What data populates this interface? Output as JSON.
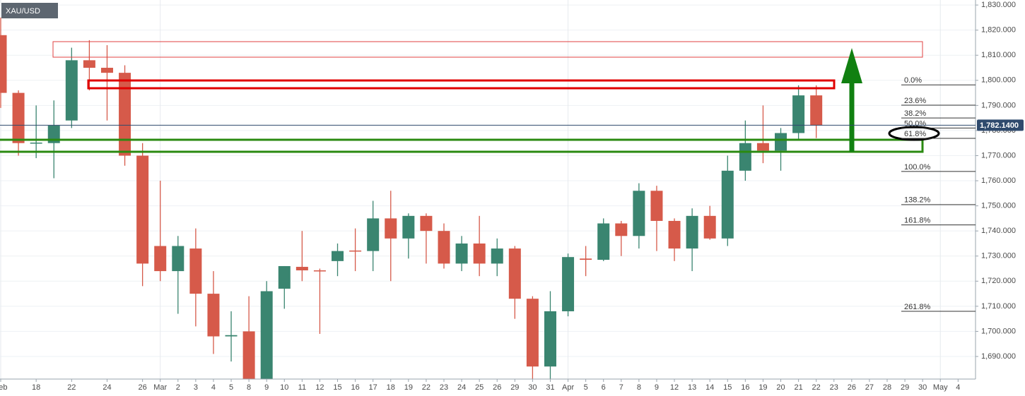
{
  "chart_data": {
    "type": "candlestick",
    "title": "XAU/USD",
    "categories": [
      "Feb",
      null,
      "18",
      null,
      "22",
      null,
      "24",
      null,
      "26",
      "Mar",
      "2",
      "3",
      "4",
      "5",
      "8",
      "9",
      "10",
      "11",
      "12",
      "15",
      "16",
      "17",
      "18",
      "19",
      "22",
      "23",
      "24",
      "25",
      "26",
      "29",
      "30",
      "31",
      "Apr",
      "5",
      "6",
      "7",
      "8",
      "9",
      "12",
      "13",
      "14",
      "15",
      "16",
      "19",
      "20",
      "21",
      "22",
      "23",
      "26",
      "27",
      "28",
      "29",
      "30",
      "May",
      "4"
    ],
    "open": [
      1818,
      1795,
      1774.8,
      1775,
      1784,
      1808,
      1805,
      1803,
      1770,
      1734,
      1724,
      1733,
      1715,
      1698,
      1700,
      1681,
      1717,
      1725.7,
      1724.3,
      1728,
      1732.2,
      1732,
      1745,
      1737,
      1746,
      1740,
      1727,
      1735,
      1727,
      1733,
      1713,
      1686,
      1708,
      1729,
      1728.5,
      1743,
      1738,
      1756,
      1744,
      1733,
      1746,
      1737,
      1764,
      1775,
      1772,
      1779,
      1794,
      null,
      null,
      null,
      null,
      null,
      null,
      null,
      null
    ],
    "high": [
      1825,
      1796,
      1790,
      1792,
      1813,
      1816,
      1814,
      1806,
      1775,
      1760,
      1738,
      1741,
      1724,
      1708,
      1714,
      1720,
      1726,
      1740,
      1725,
      1735,
      1741,
      1752,
      1756,
      1747,
      1747,
      1743,
      1738,
      1746,
      1737,
      1734,
      1714,
      1716,
      1731,
      1734,
      1745,
      1744,
      1759,
      1758,
      1745,
      1749,
      1750,
      1770,
      1784,
      1790,
      1781,
      1798,
      1798,
      null,
      null,
      null,
      null,
      null,
      null,
      null,
      null
    ],
    "low": [
      1789,
      1770,
      1769,
      1761,
      1781,
      1796,
      1784,
      1766,
      1718,
      1720,
      1707,
      1702,
      1691,
      1688,
      1678,
      1679,
      1709,
      1720,
      1699,
      1722,
      1724,
      1724,
      1720,
      1729,
      1727,
      1725,
      1724,
      1722,
      1722,
      1705,
      1679,
      1679,
      1706,
      1722,
      1728,
      1730,
      1733,
      1732,
      1728,
      1724,
      1736.5,
      1734,
      1760,
      1767,
      1764,
      1776,
      1777,
      null,
      null,
      null,
      null,
      null,
      null,
      null,
      null
    ],
    "close": [
      1795,
      1775,
      1775.2,
      1782,
      1808,
      1805,
      1803,
      1770,
      1727,
      1724,
      1734,
      1715,
      1698,
      1698.5,
      1680,
      1716,
      1726,
      1724.3,
      1724,
      1732,
      1732,
      1745,
      1737,
      1746,
      1740,
      1727,
      1735,
      1727,
      1733,
      1713,
      1686,
      1708,
      1729.6,
      1728.5,
      1743,
      1738,
      1756,
      1744,
      1733,
      1746,
      1737,
      1764,
      1775,
      1772,
      1779,
      1794,
      1782,
      null,
      null,
      null,
      null,
      null,
      null,
      null,
      null
    ],
    "up_color": "#3a8570",
    "down_color": "#d65a4a",
    "ylim": [
      1681,
      1832
    ],
    "yticks": [
      {
        "value": 1690,
        "label": "1,690.000"
      },
      {
        "value": 1700,
        "label": "1,700.000"
      },
      {
        "value": 1710,
        "label": "1,710.000"
      },
      {
        "value": 1720,
        "label": "1,720.000"
      },
      {
        "value": 1730,
        "label": "1,730.000"
      },
      {
        "value": 1740,
        "label": "1,740.000"
      },
      {
        "value": 1750,
        "label": "1,750.000"
      },
      {
        "value": 1760,
        "label": "1,760.000"
      },
      {
        "value": 1770,
        "label": "1,770.000"
      },
      {
        "value": 1780,
        "label": "1,780.000"
      },
      {
        "value": 1790,
        "label": "1,790.000"
      },
      {
        "value": 1800,
        "label": "1,800.000"
      },
      {
        "value": 1810,
        "label": "1,810.000"
      },
      {
        "value": 1820,
        "label": "1,820.000"
      },
      {
        "value": 1830,
        "label": "1,830.000"
      }
    ],
    "grid": true,
    "last_price": {
      "value": 1782.14,
      "label": "1,782.1400"
    },
    "fib_levels": [
      {
        "value": 1798.2,
        "label": "0.0%"
      },
      {
        "value": 1790.1,
        "label": "23.6%"
      },
      {
        "value": 1785,
        "label": "38.2%"
      },
      {
        "value": 1781,
        "label": "50.0%"
      },
      {
        "value": 1776.9,
        "label": "61.8%"
      },
      {
        "value": 1763.7,
        "label": "100.0%"
      },
      {
        "value": 1750.5,
        "label": "138.2%"
      },
      {
        "value": 1742.4,
        "label": "161.8%"
      },
      {
        "value": 1708,
        "label": "261.8%"
      }
    ]
  }
}
